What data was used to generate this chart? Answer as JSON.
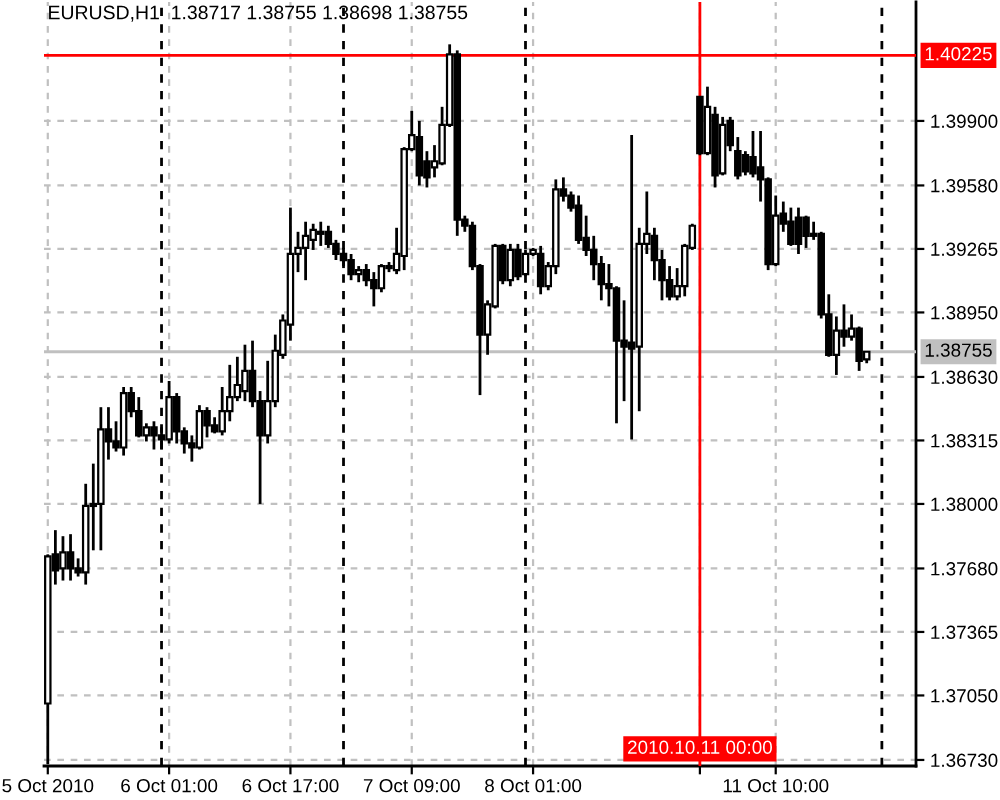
{
  "chart_data": {
    "type": "candlestick",
    "title": "EURUSD,H1  1.38717 1.38755 1.38698 1.38755",
    "categories": [
      "5 Oct 2010",
      null,
      null,
      null,
      null,
      null,
      null,
      null,
      null,
      null,
      null,
      null,
      null,
      null,
      null,
      null,
      "6 Oct 01:00",
      null,
      null,
      null,
      null,
      null,
      null,
      null,
      null,
      null,
      null,
      null,
      null,
      null,
      null,
      null,
      "6 Oct 17:00",
      null,
      null,
      null,
      null,
      null,
      null,
      null,
      null,
      null,
      null,
      null,
      null,
      null,
      null,
      null,
      "7 Oct 09:00",
      null,
      null,
      null,
      null,
      null,
      null,
      null,
      null,
      null,
      null,
      null,
      null,
      null,
      null,
      null,
      "8 Oct 01:00",
      null,
      null,
      null,
      null,
      null,
      null,
      null,
      null,
      null,
      null,
      null,
      null,
      null,
      null,
      null,
      null,
      null,
      null,
      null,
      null,
      null,
      "2010.10.11 00:00",
      null,
      null,
      null,
      null,
      null,
      null,
      null,
      null,
      null,
      "11 Oct 10:00",
      null,
      null,
      null,
      null,
      null,
      null,
      null,
      null,
      null,
      null,
      null,
      null,
      null,
      null,
      null,
      null,
      null,
      null
    ],
    "ohlc": [
      [
        1.3701,
        1.3775,
        1.3671,
        1.3774
      ],
      [
        1.3775,
        1.3787,
        1.376,
        1.3767
      ],
      [
        1.3768,
        1.3784,
        1.3762,
        1.3776
      ],
      [
        1.3776,
        1.3785,
        1.3762,
        1.3768
      ],
      [
        1.3768,
        1.3773,
        1.3764,
        1.3766
      ],
      [
        1.3766,
        1.381,
        1.376,
        1.3799
      ],
      [
        1.3799,
        1.382,
        1.3777,
        1.38
      ],
      [
        1.38,
        1.3848,
        1.3777,
        1.3837
      ],
      [
        1.3837,
        1.3848,
        1.3822,
        1.3831
      ],
      [
        1.3831,
        1.3841,
        1.3826,
        1.3828
      ],
      [
        1.3828,
        1.3858,
        1.3824,
        1.3855
      ],
      [
        1.3855,
        1.3858,
        1.3843,
        1.3846
      ],
      [
        1.3846,
        1.3853,
        1.3833,
        1.3834
      ],
      [
        1.3834,
        1.384,
        1.3831,
        1.3838
      ],
      [
        1.3838,
        1.3841,
        1.3827,
        1.3834
      ],
      [
        1.3834,
        1.3838,
        1.3827,
        1.3832
      ],
      [
        1.3832,
        1.3861,
        1.383,
        1.3853
      ],
      [
        1.3853,
        1.3855,
        1.383,
        1.3836
      ],
      [
        1.3836,
        1.3838,
        1.3825,
        1.383
      ],
      [
        1.383,
        1.3834,
        1.3821,
        1.3828
      ],
      [
        1.3828,
        1.3849,
        1.3827,
        1.3846
      ],
      [
        1.3846,
        1.3848,
        1.3833,
        1.3839
      ],
      [
        1.3839,
        1.3843,
        1.3835,
        1.3836
      ],
      [
        1.3836,
        1.3858,
        1.3834,
        1.3846
      ],
      [
        1.3846,
        1.3869,
        1.3841,
        1.3853
      ],
      [
        1.3853,
        1.3873,
        1.3851,
        1.3859
      ],
      [
        1.3856,
        1.3879,
        1.3851,
        1.3866
      ],
      [
        1.3866,
        1.3881,
        1.3848,
        1.3851
      ],
      [
        1.3851,
        1.3856,
        1.38,
        1.3834
      ],
      [
        1.3834,
        1.3871,
        1.383,
        1.3851
      ],
      [
        1.3851,
        1.3884,
        1.3848,
        1.3876
      ],
      [
        1.3874,
        1.3894,
        1.3872,
        1.3891
      ],
      [
        1.3889,
        1.3947,
        1.3881,
        1.3924
      ],
      [
        1.3924,
        1.3935,
        1.3915,
        1.3927
      ],
      [
        1.3927,
        1.394,
        1.3911,
        1.3933
      ],
      [
        1.3931,
        1.3939,
        1.3926,
        1.3936
      ],
      [
        1.3934,
        1.394,
        1.3928,
        1.3935
      ],
      [
        1.3935,
        1.3938,
        1.3927,
        1.3929
      ],
      [
        1.3929,
        1.3931,
        1.3921,
        1.3924
      ],
      [
        1.3924,
        1.3927,
        1.3917,
        1.3921
      ],
      [
        1.3921,
        1.3924,
        1.3911,
        1.3914
      ],
      [
        1.3914,
        1.3918,
        1.391,
        1.3916
      ],
      [
        1.3916,
        1.3919,
        1.3908,
        1.3911
      ],
      [
        1.3911,
        1.3915,
        1.3898,
        1.3907
      ],
      [
        1.3907,
        1.3919,
        1.3905,
        1.3918
      ],
      [
        1.3917,
        1.392,
        1.3915,
        1.3918
      ],
      [
        1.3916,
        1.3937,
        1.3914,
        1.3924
      ],
      [
        1.3923,
        1.3977,
        1.3916,
        1.3976
      ],
      [
        1.3976,
        1.3995,
        1.3975,
        1.3983
      ],
      [
        1.3982,
        1.399,
        1.3958,
        1.3963
      ],
      [
        1.397,
        1.3975,
        1.3957,
        1.3962
      ],
      [
        1.3967,
        1.3978,
        1.3962,
        1.397
      ],
      [
        1.3969,
        1.3997,
        1.3968,
        1.3988
      ],
      [
        1.3988,
        1.4028,
        1.3987,
        1.4023
      ],
      [
        1.4023,
        1.4025,
        1.3933,
        1.3941
      ],
      [
        1.3941,
        1.3943,
        1.3935,
        1.3938
      ],
      [
        1.3938,
        1.394,
        1.3916,
        1.3918
      ],
      [
        1.3918,
        1.3919,
        1.3854,
        1.3884
      ],
      [
        1.3884,
        1.3901,
        1.3874,
        1.3899
      ],
      [
        1.3898,
        1.3929,
        1.3897,
        1.3928
      ],
      [
        1.3928,
        1.3929,
        1.3909,
        1.3911
      ],
      [
        1.3911,
        1.3929,
        1.3908,
        1.3926
      ],
      [
        1.3926,
        1.3929,
        1.3911,
        1.3913
      ],
      [
        1.3914,
        1.3926,
        1.3913,
        1.3924
      ],
      [
        1.3924,
        1.3927,
        1.3923,
        1.3926
      ],
      [
        1.3924,
        1.3928,
        1.3904,
        1.3908
      ],
      [
        1.3908,
        1.392,
        1.3906,
        1.3918
      ],
      [
        1.3918,
        1.3961,
        1.3914,
        1.3956
      ],
      [
        1.3956,
        1.3962,
        1.395,
        1.3953
      ],
      [
        1.3953,
        1.3955,
        1.3945,
        1.3947
      ],
      [
        1.3948,
        1.3953,
        1.3929,
        1.3931
      ],
      [
        1.3932,
        1.3943,
        1.3923,
        1.3926
      ],
      [
        1.3926,
        1.3933,
        1.3911,
        1.3919
      ],
      [
        1.3919,
        1.3923,
        1.3901,
        1.3909
      ],
      [
        1.3909,
        1.3919,
        1.3898,
        1.3907
      ],
      [
        1.3907,
        1.3908,
        1.384,
        1.3881
      ],
      [
        1.3881,
        1.3901,
        1.3851,
        1.3878
      ],
      [
        1.388,
        1.3983,
        1.3832,
        1.3877
      ],
      [
        1.3878,
        1.3937,
        1.3846,
        1.3929
      ],
      [
        1.3929,
        1.3955,
        1.3924,
        1.3934
      ],
      [
        1.3933,
        1.3937,
        1.3911,
        1.3921
      ],
      [
        1.3921,
        1.3926,
        1.3901,
        1.3911
      ],
      [
        1.3911,
        1.3918,
        1.3901,
        1.3903
      ],
      [
        1.3903,
        1.3917,
        1.3901,
        1.3908
      ],
      [
        1.3908,
        1.3929,
        1.3903,
        1.3928
      ],
      [
        1.3927,
        1.3939,
        1.3926,
        1.3938
      ],
      [
        1.4002,
        1.4002,
        1.3973,
        1.3974
      ],
      [
        1.3974,
        1.4007,
        1.3973,
        1.3997
      ],
      [
        1.3993,
        1.3997,
        1.3957,
        1.3963
      ],
      [
        1.3964,
        1.3992,
        1.3963,
        1.3988
      ],
      [
        1.399,
        1.3992,
        1.3975,
        1.3978
      ],
      [
        1.3975,
        1.3982,
        1.3961,
        1.3963
      ],
      [
        1.3973,
        1.3975,
        1.3963,
        1.3965
      ],
      [
        1.3972,
        1.3985,
        1.3962,
        1.3964
      ],
      [
        1.3967,
        1.3985,
        1.395,
        1.3961
      ],
      [
        1.3961,
        1.3962,
        1.3916,
        1.3919
      ],
      [
        1.3919,
        1.3953,
        1.3918,
        1.3943
      ],
      [
        1.3944,
        1.395,
        1.3935,
        1.3939
      ],
      [
        1.394,
        1.3947,
        1.3928,
        1.3929
      ],
      [
        1.3942,
        1.3947,
        1.3924,
        1.3929
      ],
      [
        1.3942,
        1.3943,
        1.3927,
        1.3933
      ],
      [
        1.3934,
        1.394,
        1.3931,
        1.3933
      ],
      [
        1.3934,
        1.3935,
        1.3892,
        1.3894
      ],
      [
        1.3894,
        1.3904,
        1.3873,
        1.3874
      ],
      [
        1.3874,
        1.3893,
        1.3864,
        1.3886
      ],
      [
        1.3886,
        1.3899,
        1.3878,
        1.3883
      ],
      [
        1.3883,
        1.3894,
        1.3881,
        1.3887
      ],
      [
        1.3887,
        1.3888,
        1.3866,
        1.3871
      ],
      [
        1.38717,
        1.38755,
        1.38698,
        1.38755
      ],
      null,
      null,
      null,
      null,
      null,
      null
    ],
    "ylim": [
      1.367,
      1.4049
    ],
    "yticks": [
      {
        "value": 1.399,
        "label": "1.39900"
      },
      {
        "value": 1.3958,
        "label": "1.39580"
      },
      1.39265,
      {
        "value": 1.3895,
        "label": "1.38950"
      },
      {
        "value": 1.3863,
        "label": "1.38630"
      },
      1.38315,
      {
        "value": 1.38,
        "label": "1.38000"
      },
      {
        "value": 1.3768,
        "label": "1.37680"
      },
      1.37365,
      {
        "value": 1.3705,
        "label": "1.37050"
      },
      {
        "value": 1.3673,
        "label": "1.36730"
      }
    ],
    "grid": true,
    "ref_lines": [
      {
        "axis": "y",
        "value": 1.38755,
        "label": "1.38755",
        "color": "#c0c0c0",
        "line_style": "solid"
      },
      {
        "axis": "x",
        "value": "2010.10.11 00:00",
        "color": "#ff0000",
        "line_style": "solid"
      },
      {
        "axis": "y",
        "value": 1.40225,
        "label": "1.40225",
        "color": "#ff0000",
        "line_style": "solid"
      }
    ]
  }
}
